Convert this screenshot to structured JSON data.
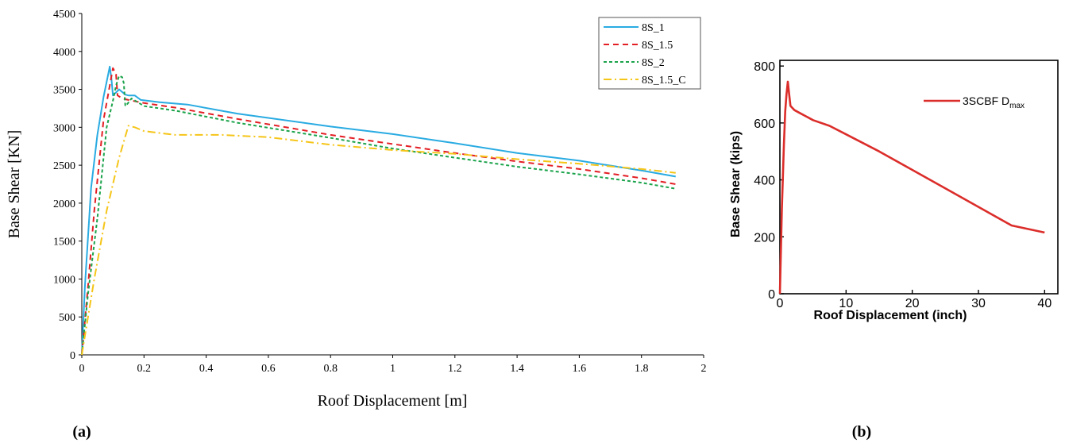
{
  "chart_data": [
    {
      "panel_label": "(a)",
      "type": "line",
      "xlabel": "Roof Displacement [m]",
      "ylabel": "Base Shear [KN]",
      "xlim": [
        0,
        2
      ],
      "ylim": [
        0,
        4500
      ],
      "xticks": [
        0,
        0.2,
        0.4,
        0.6,
        0.8,
        1,
        1.2,
        1.4,
        1.6,
        1.8,
        2
      ],
      "yticks": [
        0,
        500,
        1000,
        1500,
        2000,
        2500,
        3000,
        3500,
        4000,
        4500
      ],
      "grid": false,
      "legend_position": "top-right",
      "series": [
        {
          "name": "8S_1",
          "color": "#29ABE2",
          "dash": "solid",
          "points": [
            [
              0,
              0
            ],
            [
              0.01,
              900
            ],
            [
              0.03,
              2200
            ],
            [
              0.05,
              2900
            ],
            [
              0.07,
              3400
            ],
            [
              0.09,
              3800
            ],
            [
              0.095,
              3650
            ],
            [
              0.1,
              3420
            ],
            [
              0.12,
              3500
            ],
            [
              0.14,
              3430
            ],
            [
              0.15,
              3420
            ],
            [
              0.17,
              3420
            ],
            [
              0.19,
              3360
            ],
            [
              0.25,
              3330
            ],
            [
              0.34,
              3300
            ],
            [
              0.5,
              3180
            ],
            [
              0.8,
              3010
            ],
            [
              1.0,
              2910
            ],
            [
              1.2,
              2790
            ],
            [
              1.4,
              2660
            ],
            [
              1.6,
              2560
            ],
            [
              1.8,
              2430
            ],
            [
              1.91,
              2350
            ]
          ]
        },
        {
          "name": "8S_1.5",
          "color": "#E31E24",
          "dash": "7 5",
          "points": [
            [
              0,
              0
            ],
            [
              0.02,
              900
            ],
            [
              0.04,
              1900
            ],
            [
              0.07,
              3100
            ],
            [
              0.09,
              3550
            ],
            [
              0.1,
              3780
            ],
            [
              0.11,
              3700
            ],
            [
              0.115,
              3420
            ],
            [
              0.13,
              3380
            ],
            [
              0.15,
              3360
            ],
            [
              0.2,
              3320
            ],
            [
              0.3,
              3260
            ],
            [
              0.5,
              3110
            ],
            [
              0.8,
              2900
            ],
            [
              1.0,
              2780
            ],
            [
              1.2,
              2660
            ],
            [
              1.4,
              2550
            ],
            [
              1.6,
              2450
            ],
            [
              1.8,
              2330
            ],
            [
              1.91,
              2250
            ]
          ]
        },
        {
          "name": "8S_2",
          "color": "#1BA34B",
          "dash": "4 3",
          "points": [
            [
              0,
              0
            ],
            [
              0.02,
              800
            ],
            [
              0.05,
              1800
            ],
            [
              0.08,
              3000
            ],
            [
              0.1,
              3350
            ],
            [
              0.11,
              3550
            ],
            [
              0.12,
              3680
            ],
            [
              0.13,
              3660
            ],
            [
              0.135,
              3580
            ],
            [
              0.14,
              3280
            ],
            [
              0.145,
              3300
            ],
            [
              0.16,
              3380
            ],
            [
              0.2,
              3280
            ],
            [
              0.3,
              3220
            ],
            [
              0.5,
              3060
            ],
            [
              0.8,
              2860
            ],
            [
              1.0,
              2720
            ],
            [
              1.2,
              2600
            ],
            [
              1.4,
              2480
            ],
            [
              1.6,
              2380
            ],
            [
              1.8,
              2270
            ],
            [
              1.91,
              2190
            ]
          ]
        },
        {
          "name": "8S_1.5_C",
          "color": "#F5C518",
          "dash": "10 4 2 4",
          "points": [
            [
              0,
              0
            ],
            [
              0.04,
              1000
            ],
            [
              0.08,
              1900
            ],
            [
              0.12,
              2600
            ],
            [
              0.15,
              3020
            ],
            [
              0.17,
              3000
            ],
            [
              0.2,
              2950
            ],
            [
              0.3,
              2900
            ],
            [
              0.45,
              2900
            ],
            [
              0.6,
              2870
            ],
            [
              0.8,
              2770
            ],
            [
              1.0,
              2700
            ],
            [
              1.2,
              2650
            ],
            [
              1.4,
              2580
            ],
            [
              1.6,
              2520
            ],
            [
              1.8,
              2450
            ],
            [
              1.91,
              2400
            ]
          ]
        }
      ]
    },
    {
      "panel_label": "(b)",
      "type": "line",
      "xlabel": "Roof Displacement (inch)",
      "ylabel": "Base Shear (kips)",
      "xlim": [
        0,
        42
      ],
      "ylim": [
        0,
        820
      ],
      "xticks": [
        0,
        10,
        20,
        30,
        40
      ],
      "yticks": [
        0,
        200,
        400,
        600,
        800
      ],
      "grid": false,
      "legend_position": "top-right",
      "series": [
        {
          "name": "3SCBF D",
          "name_subscript": "max",
          "color": "#DB2D2A",
          "dash": "solid",
          "points": [
            [
              0,
              0
            ],
            [
              0.3,
              300
            ],
            [
              0.6,
              520
            ],
            [
              0.8,
              640
            ],
            [
              1.0,
              700
            ],
            [
              1.2,
              745
            ],
            [
              1.4,
              700
            ],
            [
              1.6,
              660
            ],
            [
              2.2,
              645
            ],
            [
              3,
              635
            ],
            [
              5,
              610
            ],
            [
              7.5,
              590
            ],
            [
              10,
              560
            ],
            [
              15,
              500
            ],
            [
              20,
              435
            ],
            [
              25,
              370
            ],
            [
              30,
              305
            ],
            [
              35,
              240
            ],
            [
              40,
              215
            ]
          ]
        }
      ]
    }
  ]
}
